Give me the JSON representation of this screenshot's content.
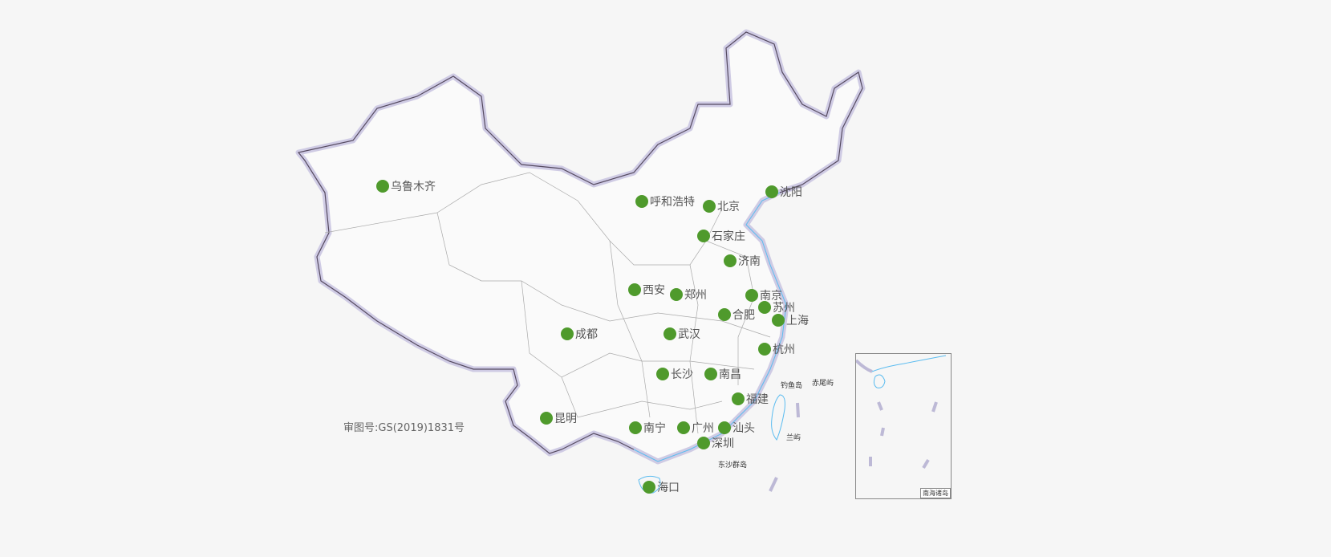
{
  "cities": [
    {
      "name": "乌鲁木齐"
    },
    {
      "name": "呼和浩特"
    },
    {
      "name": "北京"
    },
    {
      "name": "沈阳"
    },
    {
      "name": "石家庄"
    },
    {
      "name": "济南"
    },
    {
      "name": "西安"
    },
    {
      "name": "郑州"
    },
    {
      "name": "南京"
    },
    {
      "name": "苏州"
    },
    {
      "name": "合肥"
    },
    {
      "name": "上海"
    },
    {
      "name": "成都"
    },
    {
      "name": "武汉"
    },
    {
      "name": "杭州"
    },
    {
      "name": "长沙"
    },
    {
      "name": "南昌"
    },
    {
      "name": "福建"
    },
    {
      "name": "昆明"
    },
    {
      "name": "南宁"
    },
    {
      "name": "广州"
    },
    {
      "name": "汕头"
    },
    {
      "name": "深圳"
    },
    {
      "name": "海口"
    }
  ],
  "islands": {
    "diaoyu": "钓鱼岛",
    "chiwei": "赤尾屿",
    "lanyu": "兰屿",
    "dongsha": "东沙群岛",
    "nanhai": "南海诸岛"
  },
  "approval_number": "审图号:GS(2019)1831号",
  "colors": {
    "marker": "#4f9a2c",
    "border_glow": "#c9c6e0",
    "coast": "#5bbcf0",
    "province": "#aaaaaa"
  }
}
